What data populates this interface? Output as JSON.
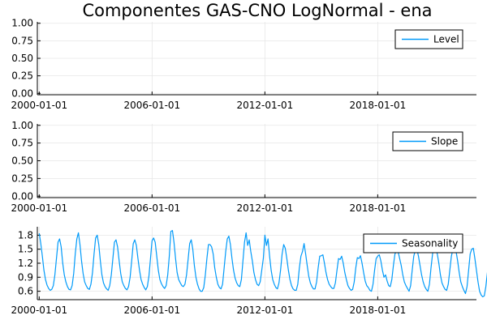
{
  "chart_data": {
    "title": "Componentes GAS-CNO LogNormal - ena",
    "type": "line",
    "series_color": "#009af9",
    "panels": [
      {
        "legend": "Level",
        "legend_position": "top-right",
        "grid": true,
        "ylim": [
          -0.02,
          1.02
        ],
        "yticks": [
          "0.00",
          "0.25",
          "0.50",
          "0.75",
          "1.00"
        ],
        "ytick_values": [
          0.0,
          0.25,
          0.5,
          0.75,
          1.0
        ],
        "xticks": [
          "2000-01-01",
          "2006-01-01",
          "2012-01-01",
          "2018-01-01"
        ],
        "xtick_years": [
          2000,
          2006,
          2012,
          2018
        ],
        "xlim": [
          1999.9,
          2023.25
        ],
        "values": []
      },
      {
        "legend": "Slope",
        "legend_position": "top-right",
        "grid": true,
        "ylim": [
          -0.02,
          1.02
        ],
        "yticks": [
          "0.00",
          "0.25",
          "0.50",
          "0.75",
          "1.00"
        ],
        "ytick_values": [
          0.0,
          0.25,
          0.5,
          0.75,
          1.0
        ],
        "xticks": [
          "2000-01-01",
          "2006-01-01",
          "2012-01-01",
          "2018-01-01"
        ],
        "xtick_years": [
          2000,
          2006,
          2012,
          2018
        ],
        "xlim": [
          1999.9,
          2023.25
        ],
        "values": []
      },
      {
        "legend": "Seasonality",
        "legend_position": "top-right",
        "grid": true,
        "ylim": [
          0.42,
          1.98
        ],
        "yticks": [
          "0.6",
          "0.9",
          "1.2",
          "1.5",
          "1.8"
        ],
        "ytick_values": [
          0.6,
          0.9,
          1.2,
          1.5,
          1.8
        ],
        "xticks": [
          "2000-01-01",
          "2006-01-01",
          "2012-01-01",
          "2018-01-01"
        ],
        "xtick_years": [
          2000,
          2006,
          2012,
          2018
        ],
        "xlim": [
          1999.9,
          2023.25
        ],
        "start": "2000-01-01",
        "frequency": "monthly",
        "values": [
          1.84,
          1.62,
          1.35,
          1.05,
          0.85,
          0.73,
          0.66,
          0.62,
          0.64,
          0.72,
          0.95,
          1.3,
          1.65,
          1.72,
          1.55,
          1.2,
          0.95,
          0.8,
          0.7,
          0.64,
          0.63,
          0.72,
          0.98,
          1.4,
          1.72,
          1.85,
          1.6,
          1.25,
          0.98,
          0.8,
          0.72,
          0.66,
          0.64,
          0.75,
          1.0,
          1.4,
          1.74,
          1.8,
          1.6,
          1.25,
          0.95,
          0.78,
          0.7,
          0.65,
          0.62,
          0.72,
          0.95,
          1.3,
          1.65,
          1.7,
          1.55,
          1.25,
          0.98,
          0.8,
          0.72,
          0.66,
          0.63,
          0.7,
          0.9,
          1.25,
          1.62,
          1.7,
          1.58,
          1.3,
          1.05,
          0.85,
          0.75,
          0.68,
          0.63,
          0.7,
          0.92,
          1.3,
          1.68,
          1.74,
          1.65,
          1.35,
          1.05,
          0.85,
          0.76,
          0.7,
          0.66,
          0.72,
          0.95,
          1.35,
          1.88,
          1.9,
          1.65,
          1.3,
          1.0,
          0.85,
          0.78,
          0.72,
          0.7,
          0.75,
          0.95,
          1.28,
          1.62,
          1.7,
          1.5,
          1.15,
          0.9,
          0.75,
          0.65,
          0.6,
          0.6,
          0.68,
          0.95,
          1.3,
          1.6,
          1.6,
          1.55,
          1.4,
          1.1,
          0.9,
          0.75,
          0.68,
          0.65,
          0.75,
          1.1,
          1.45,
          1.72,
          1.78,
          1.6,
          1.3,
          1.05,
          0.88,
          0.78,
          0.72,
          0.7,
          0.85,
          1.25,
          1.65,
          1.85,
          1.58,
          1.7,
          1.45,
          1.25,
          1.0,
          0.85,
          0.75,
          0.72,
          0.8,
          1.05,
          1.3,
          1.8,
          1.58,
          1.72,
          1.35,
          1.05,
          0.85,
          0.75,
          0.68,
          0.65,
          0.78,
          1.05,
          1.4,
          1.6,
          1.52,
          1.3,
          1.05,
          0.85,
          0.72,
          0.65,
          0.62,
          0.62,
          0.75,
          1.1,
          1.35,
          1.45,
          1.62,
          1.4,
          1.15,
          0.92,
          0.78,
          0.7,
          0.65,
          0.65,
          0.8,
          1.1,
          1.35,
          1.36,
          1.38,
          1.2,
          1.0,
          0.85,
          0.75,
          0.7,
          0.66,
          0.66,
          0.78,
          1.05,
          1.3,
          1.28,
          1.35,
          1.2,
          1.0,
          0.85,
          0.72,
          0.66,
          0.62,
          0.64,
          0.8,
          1.1,
          1.32,
          1.3,
          1.36,
          1.2,
          1.0,
          0.82,
          0.72,
          0.68,
          0.62,
          0.6,
          0.75,
          1.05,
          1.3,
          1.35,
          1.38,
          1.25,
          1.05,
          0.9,
          0.95,
          0.82,
          0.72,
          0.7,
          0.85,
          1.15,
          1.4,
          1.45,
          1.45,
          1.3,
          1.15,
          0.95,
          0.8,
          0.72,
          0.66,
          0.6,
          0.72,
          1.05,
          1.35,
          1.48,
          1.5,
          1.35,
          1.15,
          0.95,
          0.8,
          0.7,
          0.64,
          0.6,
          0.75,
          1.1,
          1.4,
          1.55,
          1.5,
          1.4,
          1.2,
          0.95,
          0.78,
          0.7,
          0.64,
          0.62,
          0.75,
          1.05,
          1.35,
          1.5,
          1.55,
          1.45,
          1.25,
          1.0,
          0.8,
          0.7,
          0.62,
          0.55,
          0.7,
          1.05,
          1.4,
          1.5,
          1.52,
          1.3,
          1.05,
          0.8,
          0.6,
          0.52,
          0.48,
          0.5,
          0.7,
          1.0,
          1.3,
          1.42,
          1.35,
          1.2,
          1.15,
          0.9,
          0.7,
          0.62,
          0.58
        ]
      }
    ]
  }
}
